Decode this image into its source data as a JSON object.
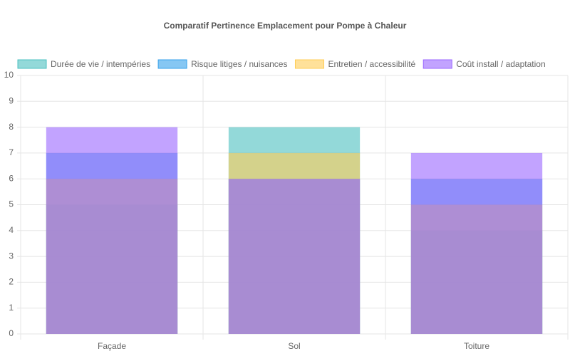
{
  "chart_data": {
    "type": "bar",
    "title": "Comparatif Pertinence Emplacement pour Pompe à Chaleur",
    "categories": [
      "Façade",
      "Sol",
      "Toiture"
    ],
    "series": [
      {
        "name": "Durée de vie / intempéries",
        "color": "#4bc0c0",
        "values": [
          5,
          8,
          4
        ]
      },
      {
        "name": "Risque litiges / nuisances",
        "color": "#36a2eb",
        "values": [
          7,
          6,
          6
        ]
      },
      {
        "name": "Entretien / accessibilité",
        "color": "#ffcd56",
        "values": [
          6,
          7,
          5
        ]
      },
      {
        "name": "Coût install / adaptation",
        "color": "#9966ff",
        "values": [
          8,
          6,
          7
        ]
      }
    ],
    "ylim": [
      0,
      10
    ],
    "yticks": [
      0,
      1,
      2,
      3,
      4,
      5,
      6,
      7,
      8,
      9,
      10
    ],
    "grid": true,
    "legend": "top"
  }
}
